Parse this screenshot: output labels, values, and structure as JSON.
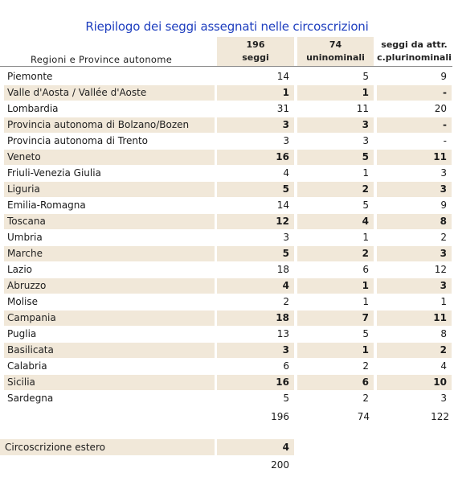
{
  "title": "Riepilogo dei seggi assegnati nelle circoscrizioni",
  "header": {
    "label": "Regioni e Province autonome",
    "col1_line1": "196",
    "col1_line2": "seggi",
    "col2_line1": "74",
    "col2_line2": "uninominali",
    "col3_line1": "seggi da attr.",
    "col3_line2": "c.plurinominali"
  },
  "rows": [
    {
      "name": "Piemonte",
      "seggi": "14",
      "uni": "5",
      "pluri": "9"
    },
    {
      "name": "Valle d'Aosta / Vallée d'Aoste",
      "seggi": "1",
      "uni": "1",
      "pluri": "-"
    },
    {
      "name": "Lombardia",
      "seggi": "31",
      "uni": "11",
      "pluri": "20"
    },
    {
      "name": "Provincia autonoma di Bolzano/Bozen",
      "seggi": "3",
      "uni": "3",
      "pluri": "-"
    },
    {
      "name": "Provincia autonoma di Trento",
      "seggi": "3",
      "uni": "3",
      "pluri": "-"
    },
    {
      "name": "Veneto",
      "seggi": "16",
      "uni": "5",
      "pluri": "11"
    },
    {
      "name": "Friuli-Venezia Giulia",
      "seggi": "4",
      "uni": "1",
      "pluri": "3"
    },
    {
      "name": "Liguria",
      "seggi": "5",
      "uni": "2",
      "pluri": "3"
    },
    {
      "name": "Emilia-Romagna",
      "seggi": "14",
      "uni": "5",
      "pluri": "9"
    },
    {
      "name": "Toscana",
      "seggi": "12",
      "uni": "4",
      "pluri": "8"
    },
    {
      "name": "Umbria",
      "seggi": "3",
      "uni": "1",
      "pluri": "2"
    },
    {
      "name": "Marche",
      "seggi": "5",
      "uni": "2",
      "pluri": "3"
    },
    {
      "name": "Lazio",
      "seggi": "18",
      "uni": "6",
      "pluri": "12"
    },
    {
      "name": "Abruzzo",
      "seggi": "4",
      "uni": "1",
      "pluri": "3"
    },
    {
      "name": "Molise",
      "seggi": "2",
      "uni": "1",
      "pluri": "1"
    },
    {
      "name": "Campania",
      "seggi": "18",
      "uni": "7",
      "pluri": "11"
    },
    {
      "name": "Puglia",
      "seggi": "13",
      "uni": "5",
      "pluri": "8"
    },
    {
      "name": "Basilicata",
      "seggi": "3",
      "uni": "1",
      "pluri": "2"
    },
    {
      "name": "Calabria",
      "seggi": "6",
      "uni": "2",
      "pluri": "4"
    },
    {
      "name": "Sicilia",
      "seggi": "16",
      "uni": "6",
      "pluri": "10"
    },
    {
      "name": "Sardegna",
      "seggi": "5",
      "uni": "2",
      "pluri": "3"
    }
  ],
  "totals": {
    "seggi": "196",
    "uni": "74",
    "pluri": "122"
  },
  "estero": {
    "name": "Circoscrizione estero",
    "seggi": "4"
  },
  "grand_total": "200",
  "colors": {
    "title": "#1f3fbf",
    "shade": "#f1e8d9"
  }
}
